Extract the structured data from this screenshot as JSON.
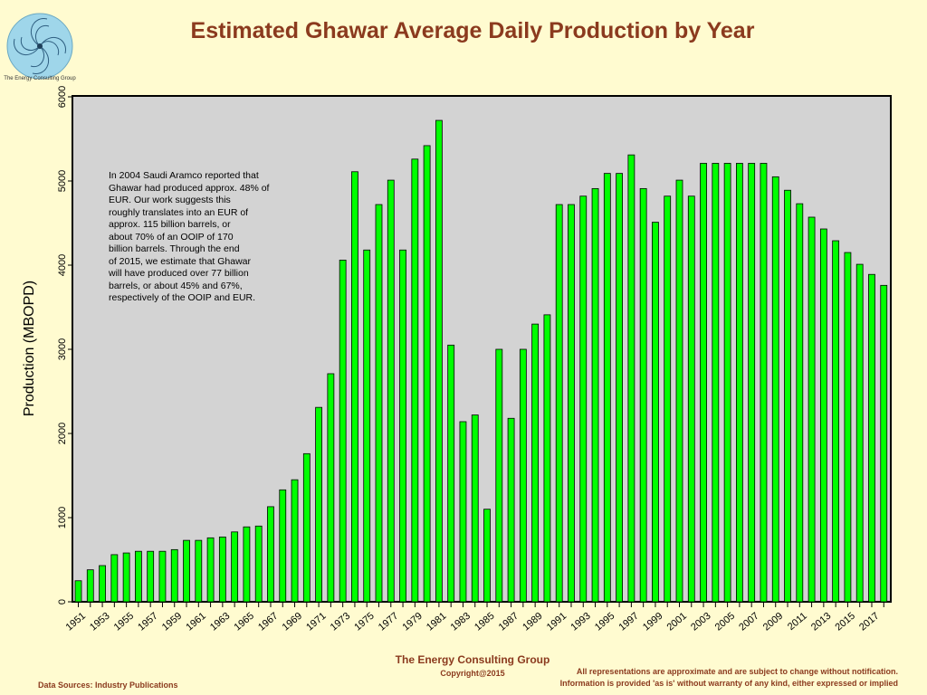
{
  "logo": {
    "caption": "The Energy Consulting Group"
  },
  "footer": {
    "org": "The Energy Consulting Group",
    "copyright": "Copyright@2015",
    "sources": "Data Sources: Industry Publications",
    "disclaimer_line1": "All representations are approximate and are subject to change without notification.",
    "disclaimer_line2": "Information is provided 'as is' without warranty of any kind, either expressed or implied"
  },
  "colors": {
    "background": "#FFFBD0",
    "plot_area": "#D3D3D3",
    "bar_fill": "#00FF00",
    "title": "#8B3A1E"
  },
  "chart_data": {
    "type": "bar",
    "title": "Estimated Ghawar Average Daily Production by Year",
    "xlabel": "",
    "ylabel": "Production (MBOPD)",
    "ylim": [
      0,
      6000
    ],
    "yticks": [
      0,
      1000,
      2000,
      3000,
      4000,
      5000,
      6000
    ],
    "grid": false,
    "legend": "none",
    "xtick_labels": [
      "1951",
      "1953",
      "1955",
      "1957",
      "1959",
      "1961",
      "1963",
      "1965",
      "1967",
      "1969",
      "1971",
      "1973",
      "1975",
      "1977",
      "1979",
      "1981",
      "1983",
      "1985",
      "1987",
      "1989",
      "1991",
      "1993",
      "1995",
      "1997",
      "1999",
      "2001",
      "2003",
      "2005",
      "2007",
      "2009",
      "2011",
      "2013",
      "2015",
      "2017"
    ],
    "categories": [
      1951,
      1952,
      1953,
      1954,
      1955,
      1956,
      1957,
      1958,
      1959,
      1960,
      1961,
      1962,
      1963,
      1964,
      1965,
      1966,
      1967,
      1968,
      1969,
      1970,
      1971,
      1972,
      1973,
      1974,
      1975,
      1976,
      1977,
      1978,
      1979,
      1980,
      1981,
      1982,
      1983,
      1984,
      1985,
      1986,
      1987,
      1988,
      1989,
      1990,
      1991,
      1992,
      1993,
      1994,
      1995,
      1996,
      1997,
      1998,
      1999,
      2000,
      2001,
      2002,
      2003,
      2004,
      2005,
      2006,
      2007,
      2008,
      2009,
      2010,
      2011,
      2012,
      2013,
      2014,
      2015,
      2016,
      2017,
      2018
    ],
    "values": [
      250,
      380,
      430,
      560,
      580,
      600,
      600,
      600,
      620,
      730,
      730,
      760,
      770,
      830,
      890,
      900,
      1130,
      1330,
      1450,
      1760,
      2310,
      2710,
      4060,
      5110,
      4180,
      4720,
      5010,
      4180,
      5260,
      5420,
      5720,
      3050,
      2140,
      2220,
      1100,
      3000,
      2180,
      3000,
      3300,
      3410,
      4720,
      4720,
      4820,
      4910,
      5090,
      5090,
      5310,
      4910,
      4510,
      4820,
      5010,
      4820,
      5210,
      5210,
      5210,
      5210,
      5210,
      5210,
      5050,
      4890,
      4730,
      4570,
      4430,
      4290,
      4150,
      4010,
      3890,
      3760
    ],
    "annotation": [
      "In 2004 Saudi Aramco reported that",
      "Ghawar had produced approx. 48% of",
      "EUR.  Our work suggests this",
      "roughly translates into an EUR of",
      "approx. 115 billion barrels, or",
      "about 70% of an OOIP of 170",
      "billion barrels.  Through the end",
      "of 2015, we estimate that Ghawar",
      "will have produced over 77 billion",
      "barrels, or about 45% and 67%,",
      "respectively of the OOIP and EUR."
    ]
  }
}
